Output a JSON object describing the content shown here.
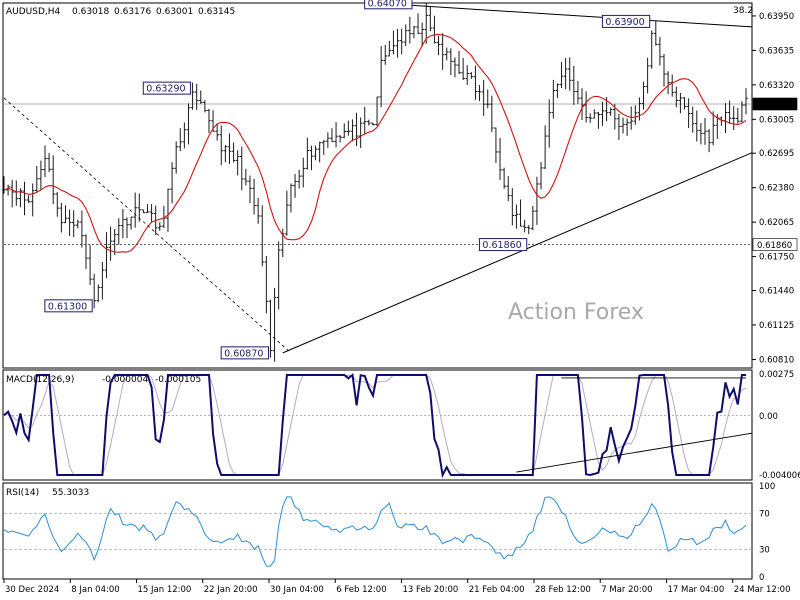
{
  "chart_data": [
    {
      "type": "line",
      "symbol": "AUDUSD,H4",
      "ohlc_readout": [
        "0.63018",
        "0.63176",
        "0.63001",
        "0.63145"
      ],
      "corner_value": "38.2",
      "watermark": "Action Forex",
      "ylim": [
        0.6075,
        0.6405
      ],
      "y_ticks": [
        "0.63950",
        "0.63635",
        "0.63320",
        "0.63005",
        "0.62695",
        "0.62380",
        "0.62065",
        "0.61750",
        "0.61440",
        "0.61125",
        "0.60810"
      ],
      "current_price": "0.63145",
      "support_level": "0.61860",
      "x_ticks": [
        "30 Dec 2024",
        "8 Jan 04:00",
        "15 Jan 12:00",
        "22 Jan 20:00",
        "30 Jan 04:00",
        "6 Feb 12:00",
        "13 Feb 20:00",
        "21 Feb 04:00",
        "28 Feb 12:00",
        "7 Mar 20:00",
        "17 Mar 04:00",
        "24 Mar 12:00"
      ],
      "annotations": [
        {
          "label": "0.64070",
          "x": 100,
          "y": 0.6407
        },
        {
          "label": "0.63900",
          "x": 158,
          "y": 0.639
        },
        {
          "label": "0.63290",
          "x": 46,
          "y": 0.6329
        },
        {
          "label": "0.61860",
          "x": 128,
          "y": 0.6186
        },
        {
          "label": "0.61300",
          "x": 22,
          "y": 0.613
        },
        {
          "label": "0.60870",
          "x": 65,
          "y": 0.6087
        }
      ],
      "close_anchors": [
        [
          0,
          0.6242
        ],
        [
          6,
          0.6225
        ],
        [
          10,
          0.6268
        ],
        [
          14,
          0.6205
        ],
        [
          18,
          0.621
        ],
        [
          22,
          0.6135
        ],
        [
          26,
          0.6195
        ],
        [
          30,
          0.621
        ],
        [
          34,
          0.622
        ],
        [
          38,
          0.6198
        ],
        [
          42,
          0.627
        ],
        [
          46,
          0.632
        ],
        [
          50,
          0.63
        ],
        [
          54,
          0.627
        ],
        [
          57,
          0.6262
        ],
        [
          60,
          0.6232
        ],
        [
          62,
          0.621
        ],
        [
          65,
          0.609
        ],
        [
          67,
          0.6175
        ],
        [
          70,
          0.624
        ],
        [
          74,
          0.6268
        ],
        [
          78,
          0.6282
        ],
        [
          82,
          0.6288
        ],
        [
          86,
          0.629
        ],
        [
          90,
          0.6295
        ],
        [
          92,
          0.635
        ],
        [
          95,
          0.637
        ],
        [
          100,
          0.638
        ],
        [
          103,
          0.639
        ],
        [
          106,
          0.6365
        ],
        [
          110,
          0.635
        ],
        [
          114,
          0.6335
        ],
        [
          118,
          0.631
        ],
        [
          121,
          0.626
        ],
        [
          124,
          0.6215
        ],
        [
          128,
          0.6195
        ],
        [
          131,
          0.626
        ],
        [
          134,
          0.633
        ],
        [
          137,
          0.6345
        ],
        [
          140,
          0.632
        ],
        [
          143,
          0.63
        ],
        [
          147,
          0.631
        ],
        [
          151,
          0.6295
        ],
        [
          155,
          0.631
        ],
        [
          158,
          0.6375
        ],
        [
          161,
          0.6345
        ],
        [
          164,
          0.632
        ],
        [
          167,
          0.6305
        ],
        [
          169,
          0.629
        ],
        [
          172,
          0.6285
        ],
        [
          175,
          0.6305
        ],
        [
          178,
          0.63
        ],
        [
          181,
          0.6314
        ]
      ],
      "indicators": [
        {
          "name": "MACD(12,26,9)",
          "values": [
            "-0.000004",
            "-0.000105"
          ],
          "ylim": [
            -0.0042,
            0.0029
          ],
          "y_ticks": [
            "0.00275",
            "0.00",
            "0.00",
            "-0.004006"
          ]
        },
        {
          "name": "RSI(14)",
          "values": [
            "55.3033"
          ],
          "ylim": [
            0,
            100
          ],
          "y_ticks": [
            "100",
            "70",
            "30",
            "0"
          ]
        }
      ]
    }
  ]
}
